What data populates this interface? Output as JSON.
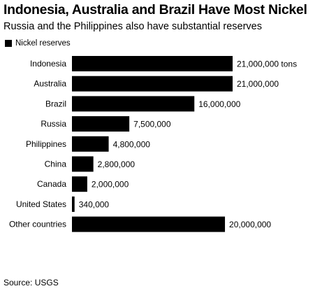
{
  "colors": {
    "bar": "#000000",
    "background": "#ffffff"
  },
  "chart_data": {
    "type": "bar",
    "orientation": "horizontal",
    "title": "Indonesia, Australia and Brazil Have Most Nickel",
    "subtitle": "Russia and the Philippines also have substantial reserves",
    "legend_position": "top-left",
    "series": [
      {
        "name": "Nickel reserves",
        "values": [
          21000000,
          21000000,
          16000000,
          7500000,
          4800000,
          2800000,
          2000000,
          340000,
          20000000
        ]
      }
    ],
    "categories": [
      "Indonesia",
      "Australia",
      "Brazil",
      "Russia",
      "Philippines",
      "China",
      "Canada",
      "United States",
      "Other countries"
    ],
    "data_labels": [
      "21,000,000 tons",
      "21,000,000",
      "16,000,000",
      "7,500,000",
      "4,800,000",
      "2,800,000",
      "2,000,000",
      "340,000",
      "20,000,000"
    ],
    "xlim": [
      0,
      21000000
    ],
    "grid": false,
    "source": "Source: USGS"
  }
}
